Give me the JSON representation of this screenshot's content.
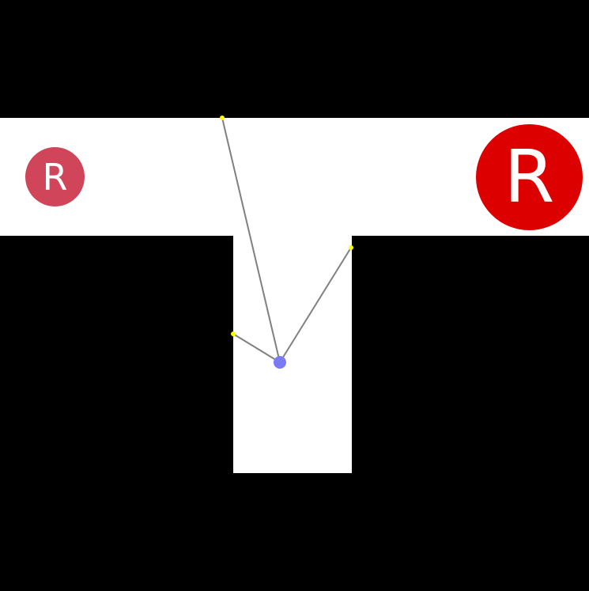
{
  "markers": {
    "small": {
      "letter": "R",
      "color": "#d0455a"
    },
    "large": {
      "letter": "R",
      "color": "#dd0000"
    }
  },
  "colors": {
    "wall": "#000000",
    "floor": "#ffffff",
    "agent": "#7b7bf5",
    "ray": "#808080",
    "ray_hit": "#ffff00"
  }
}
